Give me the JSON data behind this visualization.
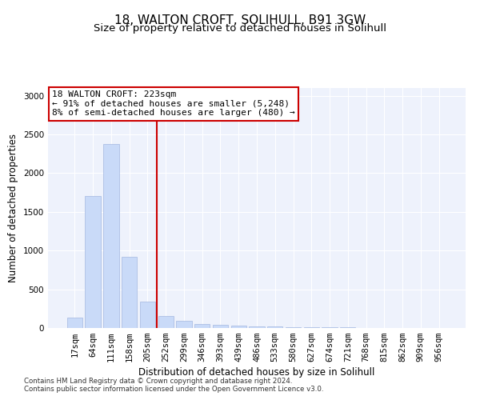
{
  "title": "18, WALTON CROFT, SOLIHULL, B91 3GW",
  "subtitle": "Size of property relative to detached houses in Solihull",
  "xlabel": "Distribution of detached houses by size in Solihull",
  "ylabel": "Number of detached properties",
  "bar_labels": [
    "17sqm",
    "64sqm",
    "111sqm",
    "158sqm",
    "205sqm",
    "252sqm",
    "299sqm",
    "346sqm",
    "393sqm",
    "439sqm",
    "486sqm",
    "533sqm",
    "580sqm",
    "627sqm",
    "674sqm",
    "721sqm",
    "768sqm",
    "815sqm",
    "862sqm",
    "909sqm",
    "956sqm"
  ],
  "bar_values": [
    130,
    1700,
    2380,
    920,
    340,
    160,
    95,
    55,
    40,
    30,
    25,
    20,
    15,
    10,
    8,
    6,
    4,
    3,
    2,
    2,
    2
  ],
  "bar_color": "#c9daf8",
  "bar_edge_color": "#a4b8e0",
  "vline_x": 4.5,
  "vline_color": "#cc0000",
  "annotation_text": "18 WALTON CROFT: 223sqm\n← 91% of detached houses are smaller (5,248)\n8% of semi-detached houses are larger (480) →",
  "annotation_box_color": "#ffffff",
  "annotation_box_edge": "#cc0000",
  "footer1": "Contains HM Land Registry data © Crown copyright and database right 2024.",
  "footer2": "Contains public sector information licensed under the Open Government Licence v3.0.",
  "ylim": [
    0,
    3100
  ],
  "yticks": [
    0,
    500,
    1000,
    1500,
    2000,
    2500,
    3000
  ],
  "plot_bg_color": "#eef2fc",
  "title_fontsize": 11,
  "subtitle_fontsize": 9.5,
  "axis_label_fontsize": 8.5,
  "tick_fontsize": 7.5,
  "annot_fontsize": 8
}
